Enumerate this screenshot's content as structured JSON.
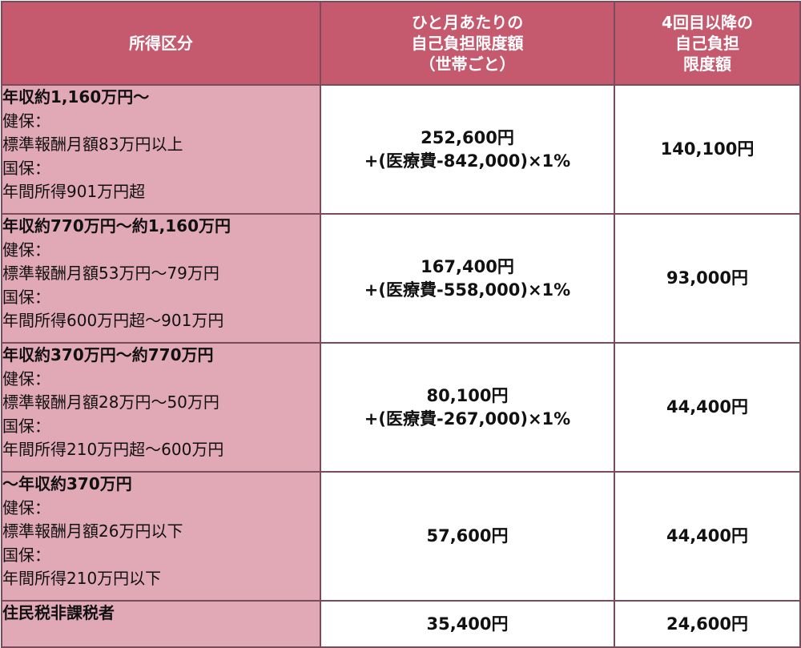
{
  "headers": {
    "col1": [
      "所得区分"
    ],
    "col2": [
      "ひと月あたりの",
      "自己負担限度額",
      "（世帯ごと）"
    ],
    "col3": [
      "4回目以降の",
      "自己負担",
      "限度額"
    ]
  },
  "rows": [
    {
      "category": "年収約1,160万円～",
      "details": [
        "健保：",
        "標準報酬月額83万円以上",
        "国保：",
        "年間所得901万円超"
      ],
      "monthly_limit": [
        "252,600円",
        "+(医療費-842,000)×1%"
      ],
      "fourth_limit": "140,100円"
    },
    {
      "category": "年収約770万円～約1,160万円",
      "details": [
        "健保：",
        "標準報酬月額53万円～79万円",
        "国保：",
        "年間所得600万円超～901万円"
      ],
      "monthly_limit": [
        "167,400円",
        "+(医療費-558,000)×1%"
      ],
      "fourth_limit": "93,000円"
    },
    {
      "category": "年収約370万円～約770万円",
      "details": [
        "健保：",
        "標準報酬月額28万円～50万円",
        "国保：",
        "年間所得210万円超～600万円"
      ],
      "monthly_limit": [
        "80,100円",
        "+(医療費-267,000)×1%"
      ],
      "fourth_limit": "44,400円"
    },
    {
      "category": "～年収約370万円",
      "details": [
        "健保：",
        "標準報酬月額26万円以下",
        "国保：",
        "年間所得210万円以下"
      ],
      "monthly_limit": [
        "57,600円"
      ],
      "fourth_limit": "44,400円"
    },
    {
      "category": "住民税非課税者",
      "details": [],
      "monthly_limit": [
        "35,400円"
      ],
      "fourth_limit": "24,600円"
    }
  ],
  "colors": {
    "header_bg": "#c55a6f",
    "category_bg": "#e1a8b5",
    "border": "#7a4b5a"
  }
}
